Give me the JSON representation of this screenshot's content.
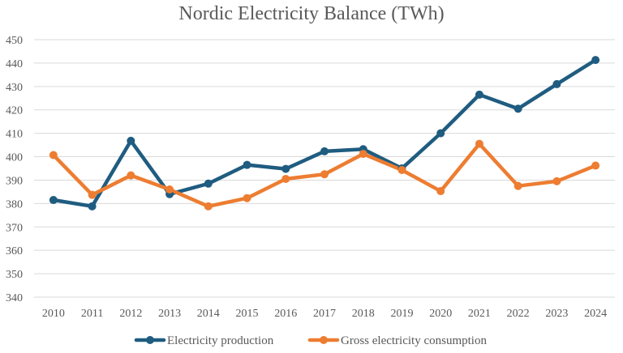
{
  "chart_data": {
    "type": "line",
    "title": "Nordic Electricity Balance (TWh)",
    "xlabel": "",
    "ylabel": "",
    "x": [
      "2010",
      "2011",
      "2012",
      "2013",
      "2014",
      "2015",
      "2016",
      "2017",
      "2018",
      "2019",
      "2020",
      "2021",
      "2022",
      "2023",
      "2024"
    ],
    "ylim": [
      340,
      450
    ],
    "yticks": [
      340,
      350,
      360,
      370,
      380,
      390,
      400,
      410,
      420,
      430,
      440,
      450
    ],
    "grid": "horizontal",
    "legend_position": "bottom",
    "series": [
      {
        "name": "Electricity production",
        "color": "#1f5c80",
        "values": [
          381.5,
          378.8,
          406.8,
          384.0,
          388.5,
          396.5,
          394.8,
          402.3,
          403.2,
          395.0,
          410.0,
          426.5,
          420.5,
          431.0,
          441.3
        ]
      },
      {
        "name": "Gross electricity consumption",
        "color": "#ed7d31",
        "values": [
          400.7,
          383.7,
          392.0,
          386.0,
          378.8,
          382.3,
          390.5,
          392.5,
          401.2,
          394.3,
          385.3,
          405.5,
          387.5,
          389.5,
          396.2
        ]
      }
    ]
  }
}
